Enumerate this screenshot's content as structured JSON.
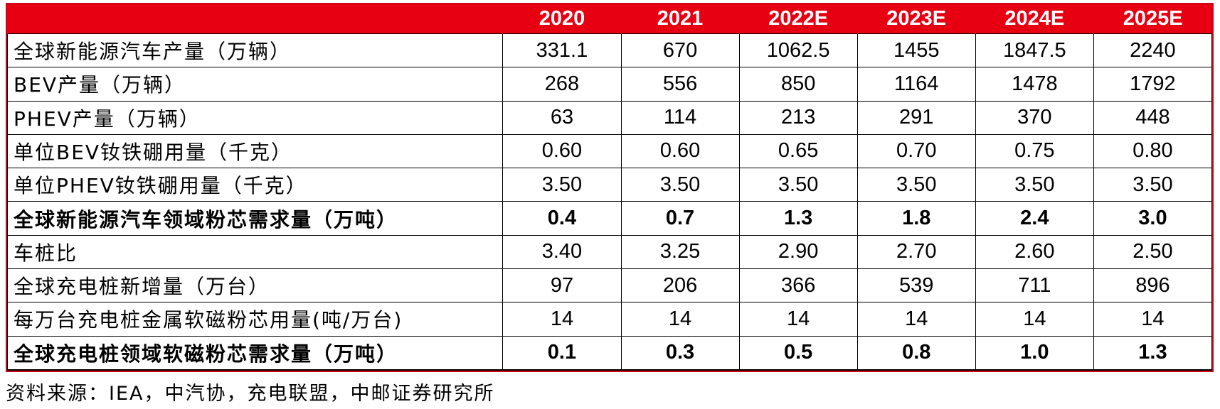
{
  "table": {
    "header": [
      "",
      "2020",
      "2021",
      "2022E",
      "2023E",
      "2024E",
      "2025E"
    ],
    "rows": [
      {
        "label": "全球新能源汽车产量（万辆）",
        "values": [
          "331.1",
          "670",
          "1062.5",
          "1455",
          "1847.5",
          "2240"
        ],
        "bold": false
      },
      {
        "label": "BEV产量（万辆）",
        "values": [
          "268",
          "556",
          "850",
          "1164",
          "1478",
          "1792"
        ],
        "bold": false
      },
      {
        "label": "PHEV产量（万辆）",
        "values": [
          "63",
          "114",
          "213",
          "291",
          "370",
          "448"
        ],
        "bold": false
      },
      {
        "label": "单位BEV钕铁硼用量（千克）",
        "values": [
          "0.60",
          "0.60",
          "0.65",
          "0.70",
          "0.75",
          "0.80"
        ],
        "bold": false
      },
      {
        "label": "单位PHEV钕铁硼用量（千克）",
        "values": [
          "3.50",
          "3.50",
          "3.50",
          "3.50",
          "3.50",
          "3.50"
        ],
        "bold": false
      },
      {
        "label": "全球新能源汽车领域粉芯需求量（万吨）",
        "values": [
          "0.4",
          "0.7",
          "1.3",
          "1.8",
          "2.4",
          "3.0"
        ],
        "bold": true
      },
      {
        "label": "车桩比",
        "values": [
          "3.40",
          "3.25",
          "2.90",
          "2.70",
          "2.60",
          "2.50"
        ],
        "bold": false
      },
      {
        "label": "全球充电桩新增量（万台）",
        "values": [
          "97",
          "206",
          "366",
          "539",
          "711",
          "896"
        ],
        "bold": false
      },
      {
        "label": "每万台充电桩金属软磁粉芯用量(吨/万台)",
        "values": [
          "14",
          "14",
          "14",
          "14",
          "14",
          "14"
        ],
        "bold": false
      },
      {
        "label": "全球充电桩领域软磁粉芯需求量（万吨）",
        "values": [
          "0.1",
          "0.3",
          "0.5",
          "0.8",
          "1.0",
          "1.3"
        ],
        "bold": true
      }
    ]
  },
  "source": "资料来源：IEA，中汽协，充电联盟，中邮证券研究所",
  "colors": {
    "header_bg": "#e60012",
    "header_text": "#ffffff",
    "border": "#000000"
  }
}
